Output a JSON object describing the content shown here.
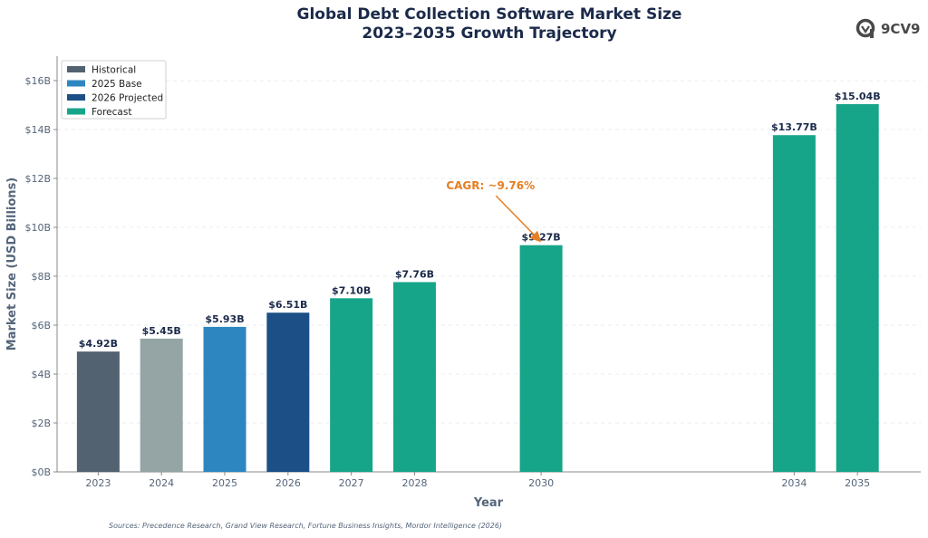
{
  "title": {
    "line1": "Global Debt Collection Software Market Size",
    "line2": "2023–2035 Growth Trajectory"
  },
  "logo": {
    "text": "9CV9",
    "icon": "9cv9-logo-icon"
  },
  "source": "Sources: Precedence Research, Grand View Research, Fortune Business Insights, Mordor Intelligence (2026)",
  "chart_data": {
    "type": "bar",
    "xlabel": "Year",
    "ylabel": "Market Size (USD Billions)",
    "ylim": [
      0,
      17
    ],
    "yticks": [
      0,
      2,
      4,
      6,
      8,
      10,
      12,
      14,
      16
    ],
    "ytick_labels": [
      "$0B",
      "$2B",
      "$4B",
      "$6B",
      "$8B",
      "$10B",
      "$12B",
      "$14B",
      "$16B"
    ],
    "xlim": [
      2022.35,
      2036
    ],
    "grid": "horizontal dashed",
    "legend_position": "top-left",
    "legend": [
      {
        "name": "Historical",
        "color": "#536270"
      },
      {
        "name": "2025 Base",
        "color": "#2e86c1"
      },
      {
        "name": "2026 Projected",
        "color": "#1c4f86"
      },
      {
        "name": "Forecast",
        "color": "#17a589"
      }
    ],
    "bars": [
      {
        "year": 2023,
        "label": "2023",
        "value": 4.92,
        "value_label": "$4.92B",
        "color": "#536270"
      },
      {
        "year": 2024,
        "label": "2024",
        "value": 5.45,
        "value_label": "$5.45B",
        "color": "#95a5a6"
      },
      {
        "year": 2025,
        "label": "2025",
        "value": 5.93,
        "value_label": "$5.93B",
        "color": "#2e86c1"
      },
      {
        "year": 2026,
        "label": "2026",
        "value": 6.51,
        "value_label": "$6.51B",
        "color": "#1c4f86"
      },
      {
        "year": 2027,
        "label": "2027",
        "value": 7.1,
        "value_label": "$7.10B",
        "color": "#17a589"
      },
      {
        "year": 2028,
        "label": "2028",
        "value": 7.76,
        "value_label": "$7.76B",
        "color": "#17a589"
      },
      {
        "year": 2030,
        "label": "2030",
        "value": 9.27,
        "value_label": "$9.27B",
        "color": "#17a589"
      },
      {
        "year": 2034,
        "label": "2034",
        "value": 13.77,
        "value_label": "$13.77B",
        "color": "#17a589"
      },
      {
        "year": 2035,
        "label": "2035",
        "value": 15.04,
        "value_label": "$15.04B",
        "color": "#17a589"
      }
    ],
    "annotation": {
      "text": "CAGR: ~9.76%",
      "color": "#e67e22",
      "text_x": 2029.2,
      "text_y": 11.55,
      "arrow_to_x": 2030,
      "arrow_to_y": 9.4
    }
  }
}
